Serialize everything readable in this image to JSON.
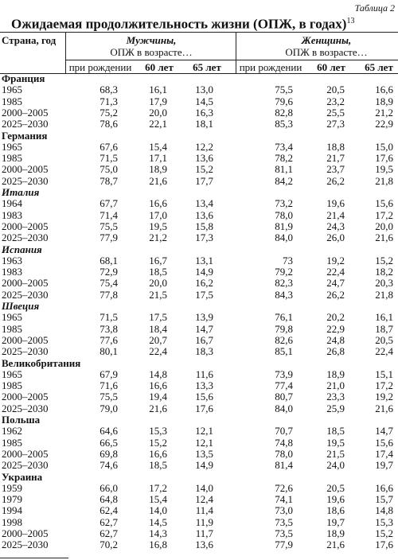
{
  "header": {
    "label": "Таблица 2",
    "title": "Ожидаемая продолжительность жизни (ОПЖ, в годах)",
    "title_note": "13"
  },
  "table": {
    "col_country": "Страна, год",
    "groups": [
      {
        "name": "Мужчины,",
        "sub": "ОПЖ в возрасте…"
      },
      {
        "name": "Женщины,",
        "sub": "ОПЖ в возрасте…"
      }
    ],
    "subcolumns": [
      "при рождении",
      "60 лет",
      "65 лет",
      "при рождении",
      "60 лет",
      "65 лет"
    ],
    "sections": [
      {
        "country": "Франция",
        "rows": [
          [
            "1965",
            "68,3",
            "16,1",
            "13,0",
            "75,5",
            "20,5",
            "16,6"
          ],
          [
            "1985",
            "71,3",
            "17,9",
            "14,5",
            "79,6",
            "23,2",
            "18,9"
          ],
          [
            "2000–2005",
            "75,2",
            "20,0",
            "16,3",
            "82,8",
            "25,5",
            "21,2"
          ],
          [
            "2025–2030",
            "78,6",
            "22,1",
            "18,1",
            "85,3",
            "27,3",
            "22,9"
          ]
        ]
      },
      {
        "country": "Германия",
        "rows": [
          [
            "1965",
            "67,6",
            "15,4",
            "12,2",
            "73,4",
            "18,8",
            "15,0"
          ],
          [
            "1985",
            "71,5",
            "17,1",
            "13,6",
            "78,2",
            "21,7",
            "17,6"
          ],
          [
            "2000–2005",
            "75,0",
            "18,9",
            "15,2",
            "81,1",
            "23,7",
            "19,5"
          ],
          [
            "2025–2030",
            "78,7",
            "21,6",
            "17,7",
            "84,2",
            "26,2",
            "21,8"
          ]
        ]
      },
      {
        "country": "Италия",
        "rows": [
          [
            "1964",
            "67,7",
            "16,6",
            "13,4",
            "73,2",
            "19,6",
            "15,6"
          ],
          [
            "1983",
            "71,4",
            "17,0",
            "13,6",
            "78,0",
            "21,4",
            "17,2"
          ],
          [
            "2000–2005",
            "75,5",
            "19,5",
            "15,8",
            "81,9",
            "24,3",
            "20,0"
          ],
          [
            "2025–2030",
            "77,9",
            "21,2",
            "17,3",
            "84,0",
            "26,0",
            "21,6"
          ]
        ]
      },
      {
        "country": "Испания",
        "rows": [
          [
            "1963",
            "68,1",
            "16,7",
            "13,1",
            "73",
            "19,2",
            "15,2"
          ],
          [
            "1983",
            "72,9",
            "18,5",
            "14,9",
            "79,2",
            "22,4",
            "18,2"
          ],
          [
            "2000–2005",
            "75,4",
            "20,0",
            "16,2",
            "82,3",
            "24,7",
            "20,3"
          ],
          [
            "2025–2030",
            "77,8",
            "21,5",
            "17,5",
            "84,3",
            "26,2",
            "21,8"
          ]
        ]
      },
      {
        "country": "Швеция",
        "rows": [
          [
            "1965",
            "71,5",
            "17,5",
            "13,9",
            "76,1",
            "20,2",
            "16,1"
          ],
          [
            "1985",
            "73,8",
            "18,4",
            "14,7",
            "79,8",
            "22,9",
            "18,7"
          ],
          [
            "2000–2005",
            "77,6",
            "20,7",
            "16,7",
            "82,6",
            "24,8",
            "20,5"
          ],
          [
            "2025–2030",
            "80,1",
            "22,4",
            "18,3",
            "85,1",
            "26,8",
            "22,4"
          ]
        ]
      },
      {
        "country": "Великобритания",
        "rows": [
          [
            "1965",
            "67,9",
            "14,8",
            "11,6",
            "73,9",
            "18,9",
            "15,1"
          ],
          [
            "1985",
            "71,6",
            "16,6",
            "13,3",
            "77,4",
            "21,0",
            "17,2"
          ],
          [
            "2000–2005",
            "75,5",
            "19,4",
            "15,6",
            "80,7",
            "23,3",
            "19,2"
          ],
          [
            "2025–2030",
            "79,0",
            "21,6",
            "17,6",
            "84,0",
            "25,9",
            "21,6"
          ]
        ]
      },
      {
        "country": "Польша",
        "rows": [
          [
            "1962",
            "64,6",
            "15,3",
            "12,1",
            "70,7",
            "18,5",
            "14,7"
          ],
          [
            "1985",
            "66,5",
            "15,2",
            "12,1",
            "74,8",
            "19,5",
            "15,6"
          ],
          [
            "2000–2005",
            "69,8",
            "16,6",
            "13,5",
            "78,0",
            "21,5",
            "17,4"
          ],
          [
            "2025–2030",
            "74,6",
            "18,5",
            "14,9",
            "81,4",
            "24,0",
            "19,7"
          ]
        ]
      },
      {
        "country": "Украина",
        "rows": [
          [
            "1959",
            "66,0",
            "17,2",
            "14,0",
            "72,6",
            "20,5",
            "16,6"
          ],
          [
            "1979",
            "64,8",
            "15,4",
            "12,4",
            "74,1",
            "19,6",
            "15,7"
          ],
          [
            "1994",
            "62,4",
            "14,0",
            "11,4",
            "73,0",
            "18,6",
            "14,8"
          ],
          [
            "1998",
            "62,7",
            "14,5",
            "11,9",
            "73,5",
            "19,7",
            "15,3"
          ],
          [
            "2000–2005",
            "62,7",
            "14,3",
            "11,7",
            "73,5",
            "18,9",
            "15,2"
          ],
          [
            "2025–2030",
            "70,2",
            "16,8",
            "13,6",
            "77,9",
            "21,6",
            "17,6"
          ]
        ]
      }
    ]
  }
}
